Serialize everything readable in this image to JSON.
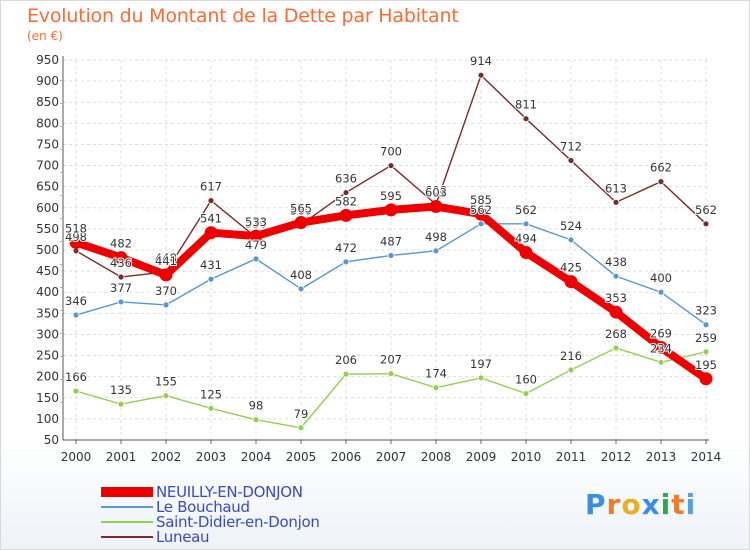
{
  "title": "Evolution du Montant de la Dette par Habitant",
  "unit_label": "(en €)",
  "brand": {
    "letters": [
      "P",
      "r",
      "o",
      "x",
      "i",
      "t",
      "i"
    ],
    "colors": [
      "#3a8ee0",
      "#f07b2a",
      "#e8b020",
      "#3a8ee0",
      "#2aa84a",
      "#f07b2a",
      "#5aa0e0"
    ]
  },
  "chart_data": {
    "type": "line",
    "categories": [
      "2000",
      "2001",
      "2002",
      "2003",
      "2004",
      "2005",
      "2006",
      "2007",
      "2008",
      "2009",
      "2010",
      "2011",
      "2012",
      "2013",
      "2014"
    ],
    "ylim": [
      50,
      950
    ],
    "yticks": [
      50,
      100,
      150,
      200,
      250,
      300,
      350,
      400,
      450,
      500,
      550,
      600,
      650,
      700,
      750,
      800,
      850,
      900,
      950
    ],
    "grid": true,
    "legend_position": "bottom",
    "series": [
      {
        "name": "Luneau",
        "color": "#7a2a2a",
        "thick": false,
        "values": [
          498,
          436,
          448,
          617,
          530,
          560,
          636,
          700,
          608,
          914,
          811,
          712,
          613,
          662,
          562
        ]
      },
      {
        "name": "Le Bouchaud",
        "color": "#5a96d0",
        "thick": false,
        "values": [
          346,
          377,
          370,
          431,
          479,
          408,
          472,
          487,
          498,
          562,
          562,
          524,
          438,
          400,
          323
        ]
      },
      {
        "name": "Saint-Didier-en-Donjon",
        "color": "#92d050",
        "thick": false,
        "values": [
          166,
          135,
          155,
          125,
          98,
          79,
          206,
          207,
          174,
          197,
          160,
          216,
          268,
          234,
          259
        ]
      },
      {
        "name": "NEUILLY-EN-DONJON",
        "color": "#ee0000",
        "thick": true,
        "values": [
          518,
          482,
          441,
          541,
          533,
          565,
          582,
          595,
          603,
          585,
          494,
          425,
          353,
          269,
          195
        ]
      }
    ],
    "legend_order": [
      "NEUILLY-EN-DONJON",
      "Le Bouchaud",
      "Saint-Didier-en-Donjon",
      "Luneau"
    ]
  }
}
